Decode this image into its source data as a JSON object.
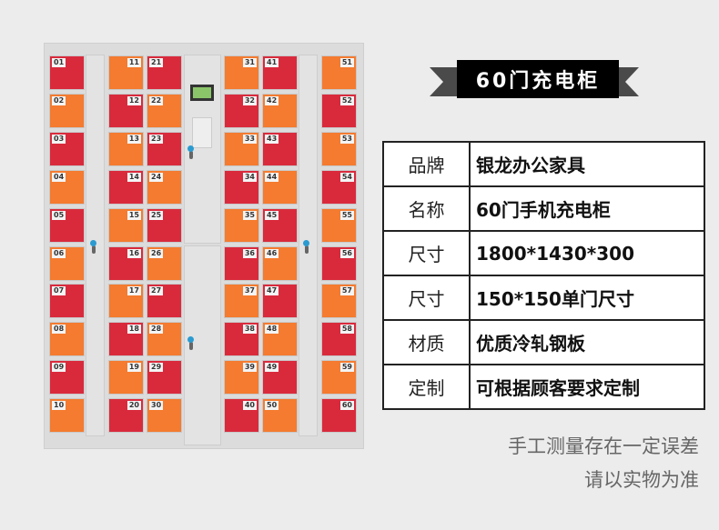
{
  "colors": {
    "red": "#d92a3c",
    "orange": "#f47b2f",
    "background": "#ececec"
  },
  "lockers": [
    {
      "label_side": "left",
      "start": "red",
      "numbers": [
        "01",
        "02",
        "03",
        "04",
        "05",
        "06",
        "07",
        "08",
        "09",
        "10"
      ]
    },
    {
      "label_side": "right",
      "start": "orange",
      "numbers": [
        "11",
        "12",
        "13",
        "14",
        "15",
        "16",
        "17",
        "18",
        "19",
        "20"
      ]
    },
    {
      "label_side": "left",
      "start": "red",
      "numbers": [
        "21",
        "22",
        "23",
        "24",
        "25",
        "26",
        "27",
        "28",
        "29",
        "30"
      ]
    },
    {
      "label_side": "right",
      "start": "orange",
      "numbers": [
        "31",
        "32",
        "33",
        "34",
        "35",
        "36",
        "37",
        "38",
        "39",
        "40"
      ]
    },
    {
      "label_side": "left",
      "start": "red",
      "numbers": [
        "41",
        "42",
        "43",
        "44",
        "45",
        "46",
        "47",
        "48",
        "49",
        "50"
      ]
    },
    {
      "label_side": "right",
      "start": "orange",
      "numbers": [
        "51",
        "52",
        "53",
        "54",
        "55",
        "56",
        "57",
        "58",
        "59",
        "60"
      ]
    }
  ],
  "banner": {
    "title": "60门充电柜"
  },
  "specs": [
    {
      "label": "品牌",
      "value": "银龙办公家具"
    },
    {
      "label": "名称",
      "value": "60门手机充电柜"
    },
    {
      "label": "尺寸",
      "value": "1800*1430*300"
    },
    {
      "label": "尺寸",
      "value": "150*150单门尺寸"
    },
    {
      "label": "材质",
      "value": "优质冷轧钢板"
    },
    {
      "label": "定制",
      "value": "可根据顾客要求定制"
    }
  ],
  "notes": [
    "手工测量存在一定误差",
    "请以实物为准"
  ]
}
